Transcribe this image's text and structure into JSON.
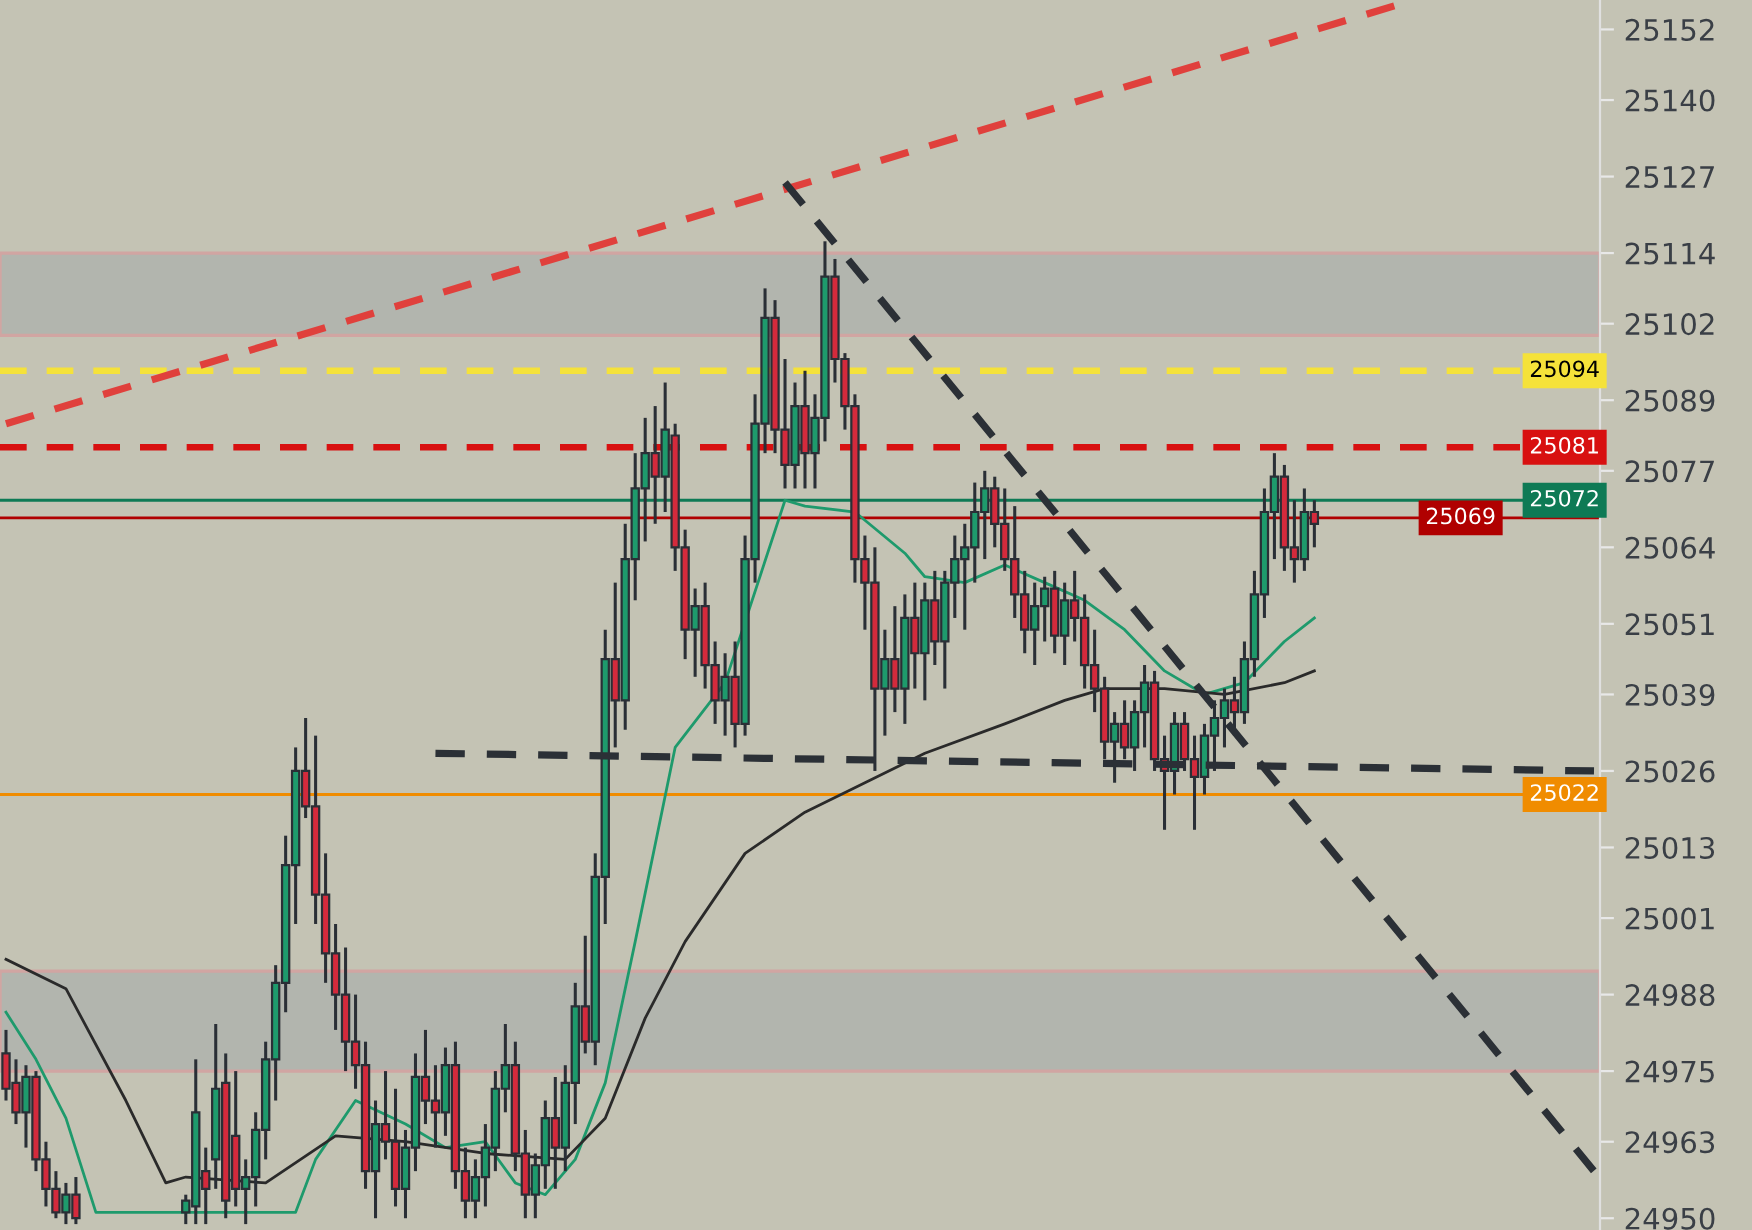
{
  "chart_data": {
    "type": "candlestick",
    "categories": [
      null,
      null,
      null,
      null,
      null,
      null,
      null,
      null,
      null,
      null,
      null,
      null,
      null,
      null,
      null,
      null,
      null,
      null,
      null,
      null,
      null,
      null,
      null,
      null,
      null,
      null,
      null,
      null,
      null,
      null,
      null,
      null,
      null,
      null,
      null,
      null,
      null,
      null,
      null,
      null,
      null,
      null,
      null,
      null,
      null,
      null,
      null,
      null,
      null,
      null,
      null,
      null,
      null,
      null,
      null,
      null,
      null,
      null,
      null,
      null,
      null,
      null,
      null,
      null,
      null,
      null,
      null,
      null,
      null,
      null,
      null,
      null,
      null,
      null,
      null,
      null,
      null,
      null,
      null,
      null,
      null,
      null,
      null,
      null,
      null,
      null,
      null,
      null,
      null,
      null,
      null,
      null,
      null,
      null,
      null,
      null,
      null,
      null,
      null,
      null,
      null,
      null,
      null,
      null,
      null,
      null,
      null,
      null,
      null,
      null,
      null,
      null,
      null,
      null,
      null,
      null,
      null,
      null,
      null,
      null,
      null,
      null,
      null,
      null,
      null,
      null,
      null,
      null,
      null,
      null,
      null,
      null,
      null,
      null,
      null,
      null,
      null,
      null,
      null,
      null,
      null,
      null,
      null,
      null,
      null,
      null,
      null,
      null,
      null,
      null,
      null,
      null,
      null,
      null,
      null,
      null,
      null,
      null,
      null,
      null
    ],
    "series": [
      {
        "type": "candlestick",
        "ohlc": [
          [
            24978,
            24982,
            24970,
            24972
          ],
          [
            24973,
            24977,
            24966,
            24968
          ],
          [
            24968,
            24976,
            24962,
            24974
          ],
          [
            24974,
            24975,
            24958,
            24960
          ],
          [
            24960,
            24963,
            24952,
            24955
          ],
          [
            24955,
            24958,
            24950,
            24951
          ],
          [
            24951,
            24956,
            24949,
            24954
          ],
          [
            24954,
            24957,
            24949,
            24950
          ],
          null,
          null,
          null,
          null,
          null,
          null,
          null,
          null,
          null,
          null,
          [
            24951,
            24954,
            24949,
            24953
          ],
          [
            24952,
            24977,
            24949,
            24968
          ],
          [
            24958,
            24962,
            24949,
            24955
          ],
          [
            24960,
            24983,
            24955,
            24972
          ],
          [
            24973,
            24978,
            24950,
            24953
          ],
          [
            24964,
            24975,
            24952,
            24955
          ],
          [
            24955,
            24960,
            24949,
            24957
          ],
          [
            24957,
            24968,
            24952,
            24965
          ],
          [
            24965,
            24980,
            24960,
            24977
          ],
          [
            24977,
            24993,
            24970,
            24990
          ],
          [
            24990,
            25015,
            24985,
            25010
          ],
          [
            25010,
            25030,
            25000,
            25026
          ],
          [
            25026,
            25035,
            25018,
            25020
          ],
          [
            25020,
            25032,
            25000,
            25005
          ],
          [
            25005,
            25012,
            24990,
            24995
          ],
          [
            24995,
            25000,
            24982,
            24988
          ],
          [
            24988,
            24996,
            24975,
            24980
          ],
          [
            24980,
            24988,
            24972,
            24976
          ],
          [
            24976,
            24980,
            24955,
            24958
          ],
          [
            24958,
            24970,
            24950,
            24966
          ],
          [
            24966,
            24975,
            24960,
            24963
          ],
          [
            24963,
            24972,
            24952,
            24955
          ],
          [
            24955,
            24965,
            24950,
            24962
          ],
          [
            24962,
            24978,
            24958,
            24974
          ],
          [
            24974,
            24982,
            24966,
            24970
          ],
          [
            24970,
            24976,
            24962,
            24968
          ],
          [
            24968,
            24979,
            24964,
            24976
          ],
          [
            24976,
            24980,
            24955,
            24958
          ],
          [
            24958,
            24962,
            24950,
            24953
          ],
          [
            24953,
            24960,
            24950,
            24957
          ],
          [
            24957,
            24966,
            24952,
            24962
          ],
          [
            24962,
            24975,
            24958,
            24972
          ],
          [
            24972,
            24983,
            24968,
            24976
          ],
          [
            24976,
            24980,
            24958,
            24961
          ],
          [
            24961,
            24965,
            24950,
            24954
          ],
          [
            24954,
            24961,
            24950,
            24959
          ],
          [
            24959,
            24970,
            24955,
            24967
          ],
          [
            24967,
            24974,
            24955,
            24962
          ],
          [
            24962,
            24976,
            24958,
            24973
          ],
          [
            24973,
            24990,
            24966,
            24986
          ],
          [
            24986,
            24998,
            24978,
            24980
          ],
          [
            24980,
            25012,
            24976,
            25008
          ],
          [
            25008,
            25050,
            25000,
            25045
          ],
          [
            25045,
            25058,
            25030,
            25038
          ],
          [
            25038,
            25068,
            25033,
            25062
          ],
          [
            25062,
            25080,
            25055,
            25074
          ],
          [
            25074,
            25086,
            25065,
            25080
          ],
          [
            25080,
            25088,
            25068,
            25076
          ],
          [
            25076,
            25092,
            25070,
            25084
          ],
          [
            25083,
            25085,
            25060,
            25064
          ],
          [
            25064,
            25067,
            25045,
            25050
          ],
          [
            25050,
            25057,
            25042,
            25054
          ],
          [
            25054,
            25058,
            25040,
            25044
          ],
          [
            25044,
            25048,
            25034,
            25038
          ],
          [
            25038,
            25046,
            25032,
            25042
          ],
          [
            25042,
            25048,
            25030,
            25034
          ],
          [
            25034,
            25066,
            25032,
            25062
          ],
          [
            25062,
            25090,
            25058,
            25085
          ],
          [
            25085,
            25108,
            25080,
            25103
          ],
          [
            25103,
            25106,
            25080,
            25084
          ],
          [
            25084,
            25096,
            25074,
            25078
          ],
          [
            25078,
            25092,
            25074,
            25088
          ],
          [
            25088,
            25094,
            25074,
            25080
          ],
          [
            25080,
            25090,
            25074,
            25086
          ],
          [
            25086,
            25116,
            25082,
            25110
          ],
          [
            25110,
            25113,
            25092,
            25096
          ],
          [
            25096,
            25097,
            25084,
            25088
          ],
          [
            25088,
            25090,
            25058,
            25062
          ],
          [
            25062,
            25066,
            25050,
            25058
          ],
          [
            25058,
            25064,
            25026,
            25040
          ],
          [
            25040,
            25050,
            25032,
            25045
          ],
          [
            25045,
            25054,
            25036,
            25040
          ],
          [
            25040,
            25056,
            25034,
            25052
          ],
          [
            25052,
            25058,
            25040,
            25046
          ],
          [
            25046,
            25058,
            25038,
            25055
          ],
          [
            25055,
            25060,
            25044,
            25048
          ],
          [
            25048,
            25060,
            25040,
            25058
          ],
          [
            25058,
            25066,
            25052,
            25062
          ],
          [
            25062,
            25068,
            25050,
            25064
          ],
          [
            25064,
            25075,
            25058,
            25070
          ],
          [
            25070,
            25077,
            25062,
            25074
          ],
          [
            25074,
            25076,
            25064,
            25068
          ],
          [
            25068,
            25074,
            25060,
            25062
          ],
          [
            25062,
            25071,
            25052,
            25056
          ],
          [
            25056,
            25060,
            25046,
            25050
          ],
          [
            25050,
            25058,
            25044,
            25054
          ],
          [
            25054,
            25059,
            25048,
            25057
          ],
          [
            25057,
            25060,
            25046,
            25049
          ],
          [
            25049,
            25058,
            25044,
            25055
          ],
          [
            25055,
            25060,
            25048,
            25052
          ],
          [
            25052,
            25056,
            25040,
            25044
          ],
          [
            25044,
            25050,
            25036,
            25040
          ],
          [
            25040,
            25042,
            25028,
            25031
          ],
          [
            25031,
            25036,
            25024,
            25034
          ],
          [
            25034,
            25038,
            25028,
            25030
          ],
          [
            25030,
            25038,
            25026,
            25036
          ],
          [
            25036,
            25044,
            25030,
            25041
          ],
          [
            25041,
            25043,
            25026,
            25028
          ],
          [
            25028,
            25032,
            25016,
            25026
          ],
          [
            25026,
            25036,
            25022,
            25034
          ],
          [
            25034,
            25036,
            25026,
            25028
          ],
          [
            25028,
            25032,
            25016,
            25025
          ],
          [
            25025,
            25034,
            25022,
            25032
          ],
          [
            25032,
            25038,
            25026,
            25035
          ],
          [
            25035,
            25040,
            25030,
            25038
          ],
          [
            25038,
            25042,
            25032,
            25036
          ],
          [
            25036,
            25048,
            25034,
            25045
          ],
          [
            25045,
            25060,
            25042,
            25056
          ],
          [
            25056,
            25074,
            25052,
            25070
          ],
          [
            25070,
            25080,
            25062,
            25076
          ],
          [
            25076,
            25078,
            25060,
            25064
          ],
          [
            25064,
            25072,
            25058,
            25062
          ],
          [
            25062,
            25074,
            25060,
            25070
          ],
          [
            25070,
            25072,
            25064,
            25068
          ],
          null,
          null,
          null,
          null,
          null,
          null,
          null,
          null,
          null,
          null,
          null,
          null,
          null,
          null,
          null,
          null,
          null,
          null,
          null,
          null,
          null,
          null,
          null,
          null,
          null,
          null,
          null,
          null
        ],
        "colors": [
          "#d42a3c",
          "#d42a3c",
          "#1e9a6c",
          "#d42a3c",
          "#d42a3c",
          "#d42a3c",
          "#1e9a6c",
          "#d42a3c",
          null,
          null,
          null,
          null,
          null,
          null,
          null,
          null,
          null,
          null,
          "#1e9a6c",
          "#1e9a6c",
          "#d42a3c",
          "#1e9a6c",
          "#d42a3c",
          "#d42a3c",
          "#1e9a6c",
          "#1e9a6c",
          "#1e9a6c",
          "#1e9a6c",
          "#1e9a6c",
          "#1e9a6c",
          "#d42a3c",
          "#d42a3c",
          "#d42a3c",
          "#d42a3c",
          "#d42a3c",
          "#d42a3c",
          "#d42a3c",
          "#1e9a6c",
          "#d42a3c",
          "#d42a3c",
          "#1e9a6c",
          "#1e9a6c",
          "#d42a3c",
          "#d42a3c",
          "#1e9a6c",
          "#d42a3c",
          "#d42a3c",
          "#1e9a6c",
          "#1e9a6c",
          "#1e9a6c",
          "#1e9a6c",
          "#d42a3c",
          "#d42a3c",
          "#1e9a6c",
          "#1e9a6c",
          "#d42a3c",
          "#1e9a6c",
          "#1e9a6c",
          "#d42a3c",
          "#1e9a6c",
          "#1e9a6c",
          "#d42a3c",
          "#1e9a6c",
          "#1e9a6c",
          "#1e9a6c",
          "#d42a3c",
          "#1e9a6c",
          "#d42a3c",
          "#d42a3c",
          "#1e9a6c",
          "#d42a3c",
          "#d42a3c",
          "#1e9a6c",
          "#d42a3c",
          "#1e9a6c",
          "#1e9a6c",
          "#1e9a6c",
          "#d42a3c",
          "#d42a3c",
          "#1e9a6c",
          "#d42a3c",
          "#1e9a6c",
          "#1e9a6c",
          "#d42a3c",
          "#d42a3c",
          "#d42a3c",
          "#d42a3c",
          "#d42a3c",
          "#1e9a6c",
          "#d42a3c",
          "#1e9a6c",
          "#d42a3c",
          "#1e9a6c",
          "#d42a3c",
          "#1e9a6c",
          "#1e9a6c",
          "#1e9a6c",
          "#1e9a6c",
          "#1e9a6c",
          "#d42a3c",
          "#d42a3c",
          "#d42a3c",
          "#d42a3c",
          "#1e9a6c",
          "#1e9a6c",
          "#d42a3c",
          "#1e9a6c",
          "#d42a3c",
          "#d42a3c",
          "#d42a3c",
          "#d42a3c",
          "#1e9a6c",
          "#d42a3c",
          "#1e9a6c",
          "#1e9a6c",
          "#d42a3c",
          "#d42a3c",
          "#1e9a6c",
          "#d42a3c",
          "#d42a3c",
          "#1e9a6c",
          "#1e9a6c",
          "#1e9a6c",
          "#d42a3c",
          "#1e9a6c",
          "#1e9a6c",
          "#1e9a6c",
          "#1e9a6c",
          "#d42a3c",
          "#d42a3c",
          "#1e9a6c",
          "#d42a3c",
          null,
          null,
          null,
          null,
          null,
          null,
          null,
          null,
          null,
          null,
          null,
          null,
          null,
          null,
          null,
          null,
          null,
          null,
          null,
          null,
          null,
          null,
          null,
          null,
          null,
          null,
          null,
          null
        ]
      },
      {
        "type": "line",
        "color": "#1e9a6c",
        "values": [
          24985,
          null,
          null,
          24977,
          null,
          null,
          24967,
          null,
          null,
          24951,
          null,
          null,
          null,
          null,
          null,
          null,
          null,
          null,
          null,
          null,
          null,
          null,
          null,
          null,
          null,
          null,
          null,
          null,
          null,
          24951,
          null,
          24960,
          null,
          null,
          null,
          24970,
          null,
          null,
          null,
          null,
          24966,
          null,
          null,
          null,
          24962,
          null,
          null,
          null,
          24963,
          null,
          null,
          24956,
          null,
          null,
          24954,
          null,
          null,
          24960,
          null,
          null,
          24973,
          null,
          null,
          24997,
          null,
          null,
          null,
          25030,
          null,
          null,
          null,
          null,
          25041,
          null,
          null,
          null,
          null,
          null,
          25072,
          null,
          25071,
          null,
          null,
          null,
          null,
          25070,
          null,
          null,
          null,
          null,
          25063,
          null,
          25059,
          null,
          null,
          null,
          25058,
          null,
          null,
          null,
          25061,
          null,
          null,
          null,
          25058,
          null,
          null,
          null,
          25055,
          null,
          null,
          null,
          25050,
          null,
          null,
          null,
          25043,
          null,
          null,
          null,
          25039,
          null,
          null,
          null,
          25041,
          null,
          null,
          null,
          25048,
          null,
          null,
          25052,
          null,
          null,
          null,
          null,
          null,
          null,
          null,
          null,
          null,
          null,
          null,
          null,
          null,
          null,
          null,
          null,
          null,
          null,
          null,
          null,
          null,
          null,
          null,
          null,
          null,
          null,
          null,
          null
        ]
      },
      {
        "type": "line",
        "color": "#2a2a2a",
        "values": [
          24994,
          null,
          null,
          null,
          null,
          null,
          24989,
          null,
          null,
          null,
          null,
          null,
          24970,
          null,
          null,
          null,
          24956,
          null,
          24957,
          null,
          null,
          null,
          null,
          null,
          null,
          null,
          24956,
          null,
          null,
          null,
          null,
          null,
          null,
          24964,
          null,
          null,
          null,
          null,
          null,
          null,
          24963,
          null,
          null,
          null,
          null,
          null,
          null,
          null,
          24961,
          null,
          null,
          null,
          null,
          null,
          null,
          null,
          24960,
          null,
          null,
          null,
          24967,
          null,
          null,
          null,
          24984,
          null,
          null,
          null,
          24997,
          null,
          null,
          null,
          null,
          null,
          25012,
          null,
          null,
          null,
          null,
          null,
          25019,
          null,
          null,
          null,
          null,
          null,
          25024,
          null,
          null,
          null,
          null,
          null,
          25029,
          null,
          null,
          null,
          null,
          null,
          null,
          null,
          25034,
          null,
          null,
          null,
          null,
          null,
          25038,
          null,
          null,
          null,
          25040,
          null,
          null,
          null,
          null,
          null,
          25040,
          null,
          null,
          null,
          null,
          null,
          25039,
          null,
          null,
          null,
          null,
          null,
          25041,
          null,
          null,
          25043,
          null,
          null,
          null,
          null,
          null,
          null,
          null,
          null,
          null,
          null,
          null,
          null,
          null,
          null,
          null,
          null,
          null,
          null,
          null,
          null,
          null,
          null,
          null,
          null,
          null,
          null,
          null,
          null
        ]
      },
      {
        "type": "line",
        "color": "#e0403c",
        "line_style": "dashed",
        "values": [
          25085,
          null,
          null,
          null,
          null,
          null,
          null,
          null,
          null,
          null,
          null,
          null,
          null,
          null,
          null,
          null,
          null,
          null,
          null,
          null,
          null,
          null,
          null,
          null,
          null,
          null,
          null,
          null,
          null,
          null,
          null,
          null,
          null,
          null,
          null,
          null,
          null,
          null,
          null,
          null,
          null,
          null,
          null,
          null,
          null,
          null,
          null,
          null,
          null,
          null,
          null,
          null,
          null,
          null,
          null,
          null,
          null,
          null,
          null,
          null,
          null,
          null,
          null,
          null,
          null,
          null,
          null,
          null,
          null,
          null,
          null,
          null,
          null,
          null,
          null,
          null,
          null,
          null,
          null,
          null,
          null,
          null,
          null,
          null,
          null,
          null,
          null,
          null,
          null,
          null,
          null,
          null,
          null,
          null,
          null,
          null,
          null,
          null,
          null,
          null,
          null,
          null,
          null,
          null,
          null,
          null,
          null,
          null,
          null,
          null,
          null,
          null,
          null,
          null,
          null,
          null,
          null,
          null,
          null,
          null,
          null,
          null,
          null,
          null,
          null,
          null,
          null,
          null,
          null,
          null,
          null,
          null,
          null,
          null,
          null,
          null,
          null,
          null,
          null,
          25156,
          null,
          null,
          null,
          null,
          null,
          null,
          null,
          null,
          null,
          null,
          null,
          null,
          null,
          null,
          null,
          null,
          null,
          null,
          null,
          null
        ]
      },
      {
        "type": "line",
        "color": "#2b3036",
        "line_style": "dashed",
        "values": [
          null,
          null,
          null,
          null,
          null,
          null,
          null,
          null,
          null,
          null,
          null,
          null,
          null,
          null,
          null,
          null,
          null,
          null,
          null,
          null,
          null,
          null,
          null,
          null,
          null,
          null,
          null,
          null,
          null,
          null,
          null,
          null,
          null,
          null,
          null,
          null,
          null,
          null,
          null,
          null,
          null,
          null,
          null,
          null,
          null,
          null,
          null,
          null,
          null,
          null,
          null,
          null,
          null,
          null,
          null,
          null,
          null,
          null,
          null,
          null,
          null,
          null,
          null,
          null,
          null,
          null,
          null,
          null,
          null,
          null,
          null,
          null,
          null,
          null,
          null,
          null,
          null,
          null,
          25126,
          null,
          null,
          null,
          null,
          null,
          null,
          null,
          null,
          null,
          null,
          null,
          null,
          null,
          null,
          null,
          null,
          null,
          null,
          null,
          null,
          null,
          null,
          null,
          null,
          null,
          null,
          null,
          null,
          null,
          null,
          null,
          null,
          null,
          null,
          null,
          null,
          null,
          null,
          null,
          null,
          null,
          null,
          null,
          null,
          null,
          null,
          null,
          null,
          null,
          null,
          null,
          null,
          null,
          null,
          null,
          null,
          null,
          null,
          null,
          null,
          null,
          null,
          null,
          null,
          null,
          null,
          null,
          null,
          null,
          null,
          null,
          null,
          null,
          null,
          null,
          null,
          null,
          null,
          null,
          null,
          24958
        ]
      },
      {
        "type": "line",
        "color": "#2b3036",
        "line_style": "dashed",
        "values": [
          null,
          null,
          null,
          null,
          null,
          null,
          null,
          null,
          null,
          null,
          null,
          null,
          null,
          null,
          null,
          null,
          null,
          null,
          null,
          null,
          null,
          null,
          null,
          null,
          null,
          null,
          null,
          null,
          null,
          null,
          null,
          null,
          null,
          null,
          null,
          null,
          null,
          null,
          null,
          null,
          null,
          null,
          null,
          25029,
          null,
          null,
          null,
          null,
          null,
          null,
          null,
          null,
          null,
          null,
          null,
          null,
          null,
          null,
          null,
          null,
          null,
          null,
          null,
          null,
          null,
          null,
          null,
          null,
          null,
          null,
          null,
          null,
          null,
          null,
          null,
          null,
          null,
          null,
          null,
          null,
          null,
          null,
          null,
          null,
          null,
          null,
          null,
          null,
          null,
          null,
          null,
          null,
          null,
          null,
          null,
          null,
          null,
          null,
          null,
          null,
          null,
          null,
          null,
          null,
          null,
          null,
          null,
          null,
          null,
          null,
          null,
          null,
          null,
          null,
          null,
          null,
          null,
          null,
          null,
          null,
          null,
          null,
          null,
          null,
          null,
          null,
          null,
          null,
          null,
          null,
          null,
          null,
          null,
          null,
          null,
          null,
          null,
          null,
          null,
          null,
          null,
          null,
          null,
          null,
          null,
          null,
          null,
          null,
          null,
          null,
          null,
          null,
          null,
          null,
          null,
          null,
          null,
          null,
          null,
          25026
        ]
      }
    ],
    "ylim": [
      24948,
      25157
    ],
    "yticks": [
      24950,
      24963,
      24975,
      24988,
      25001,
      25013,
      25026,
      25039,
      25051,
      25064,
      25077,
      25089,
      25102,
      25114,
      25127,
      25140,
      25152
    ],
    "ref_lines": [
      {
        "axis": "y",
        "value": 25094,
        "label": "25094",
        "color": "#f5e23a",
        "line_style": "dashed"
      },
      {
        "axis": "y",
        "value": 25081,
        "label": "25081",
        "color": "#d81010",
        "line_style": "dashed"
      },
      {
        "axis": "y",
        "value": 25072,
        "label": "25072",
        "color": "#0e7a55",
        "line_style": "solid"
      },
      {
        "axis": "y",
        "value": 25069,
        "label": "25069",
        "color": "#b00000",
        "line_style": "solid"
      },
      {
        "axis": "y",
        "value": 25022,
        "label": "25022",
        "color": "#f08c00",
        "line_style": "solid"
      }
    ],
    "bands": [
      {
        "axis": "y",
        "from": 25100,
        "to": 25114,
        "color": "#b0b3ad"
      },
      {
        "axis": "y",
        "from": 24975,
        "to": 24992,
        "color": "#b0b3ad"
      }
    ],
    "tick_labels": "y",
    "grid": false,
    "legend": false
  }
}
